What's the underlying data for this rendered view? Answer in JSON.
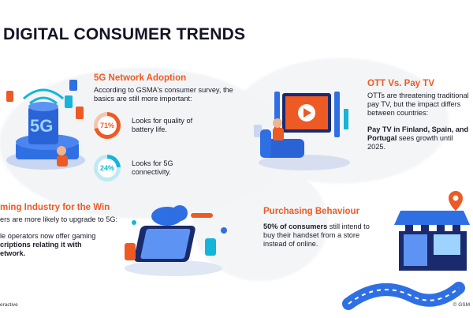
{
  "title": "DIGITAL CONSUMER TRENDS",
  "sections": {
    "adoption": {
      "heading": "5G Network Adoption",
      "intro": "According to GSMA's consumer survey, the basics are still more important:",
      "stat1": {
        "value": "71%",
        "label": "Looks for quality of battery life.",
        "fraction": 0.71
      },
      "stat2": {
        "value": "24%",
        "label": "Looks for 5G connectivity.",
        "fraction": 0.24
      },
      "icon_text": "5G"
    },
    "ott": {
      "heading": "OTT Vs. Pay TV",
      "body": "OTTs are threatening traditional pay TV, but the impact differs between countries:",
      "bold": "Pay TV in Finland, Spain, and Portugal",
      "rest": "sees growth until 2025."
    },
    "gaming": {
      "heading": "ming Industry for the Win",
      "line1": "ers are more likely to upgrade to 5G:",
      "line2": "le operators now offer gaming",
      "bold2": "criptions relating it with",
      "bold3": "etwork."
    },
    "purchasing": {
      "heading": "Purchasing Behaviour",
      "bold": "50% of consumers",
      "rest": "still intend to buy their handset from a store instead of online."
    }
  },
  "footer": {
    "left": "eractive",
    "right": "© GSM"
  },
  "colors": {
    "accent": "#ee5a24",
    "cyan": "#14b5d9",
    "blue": "#2f6fe4",
    "navy": "#1a2a6c"
  }
}
